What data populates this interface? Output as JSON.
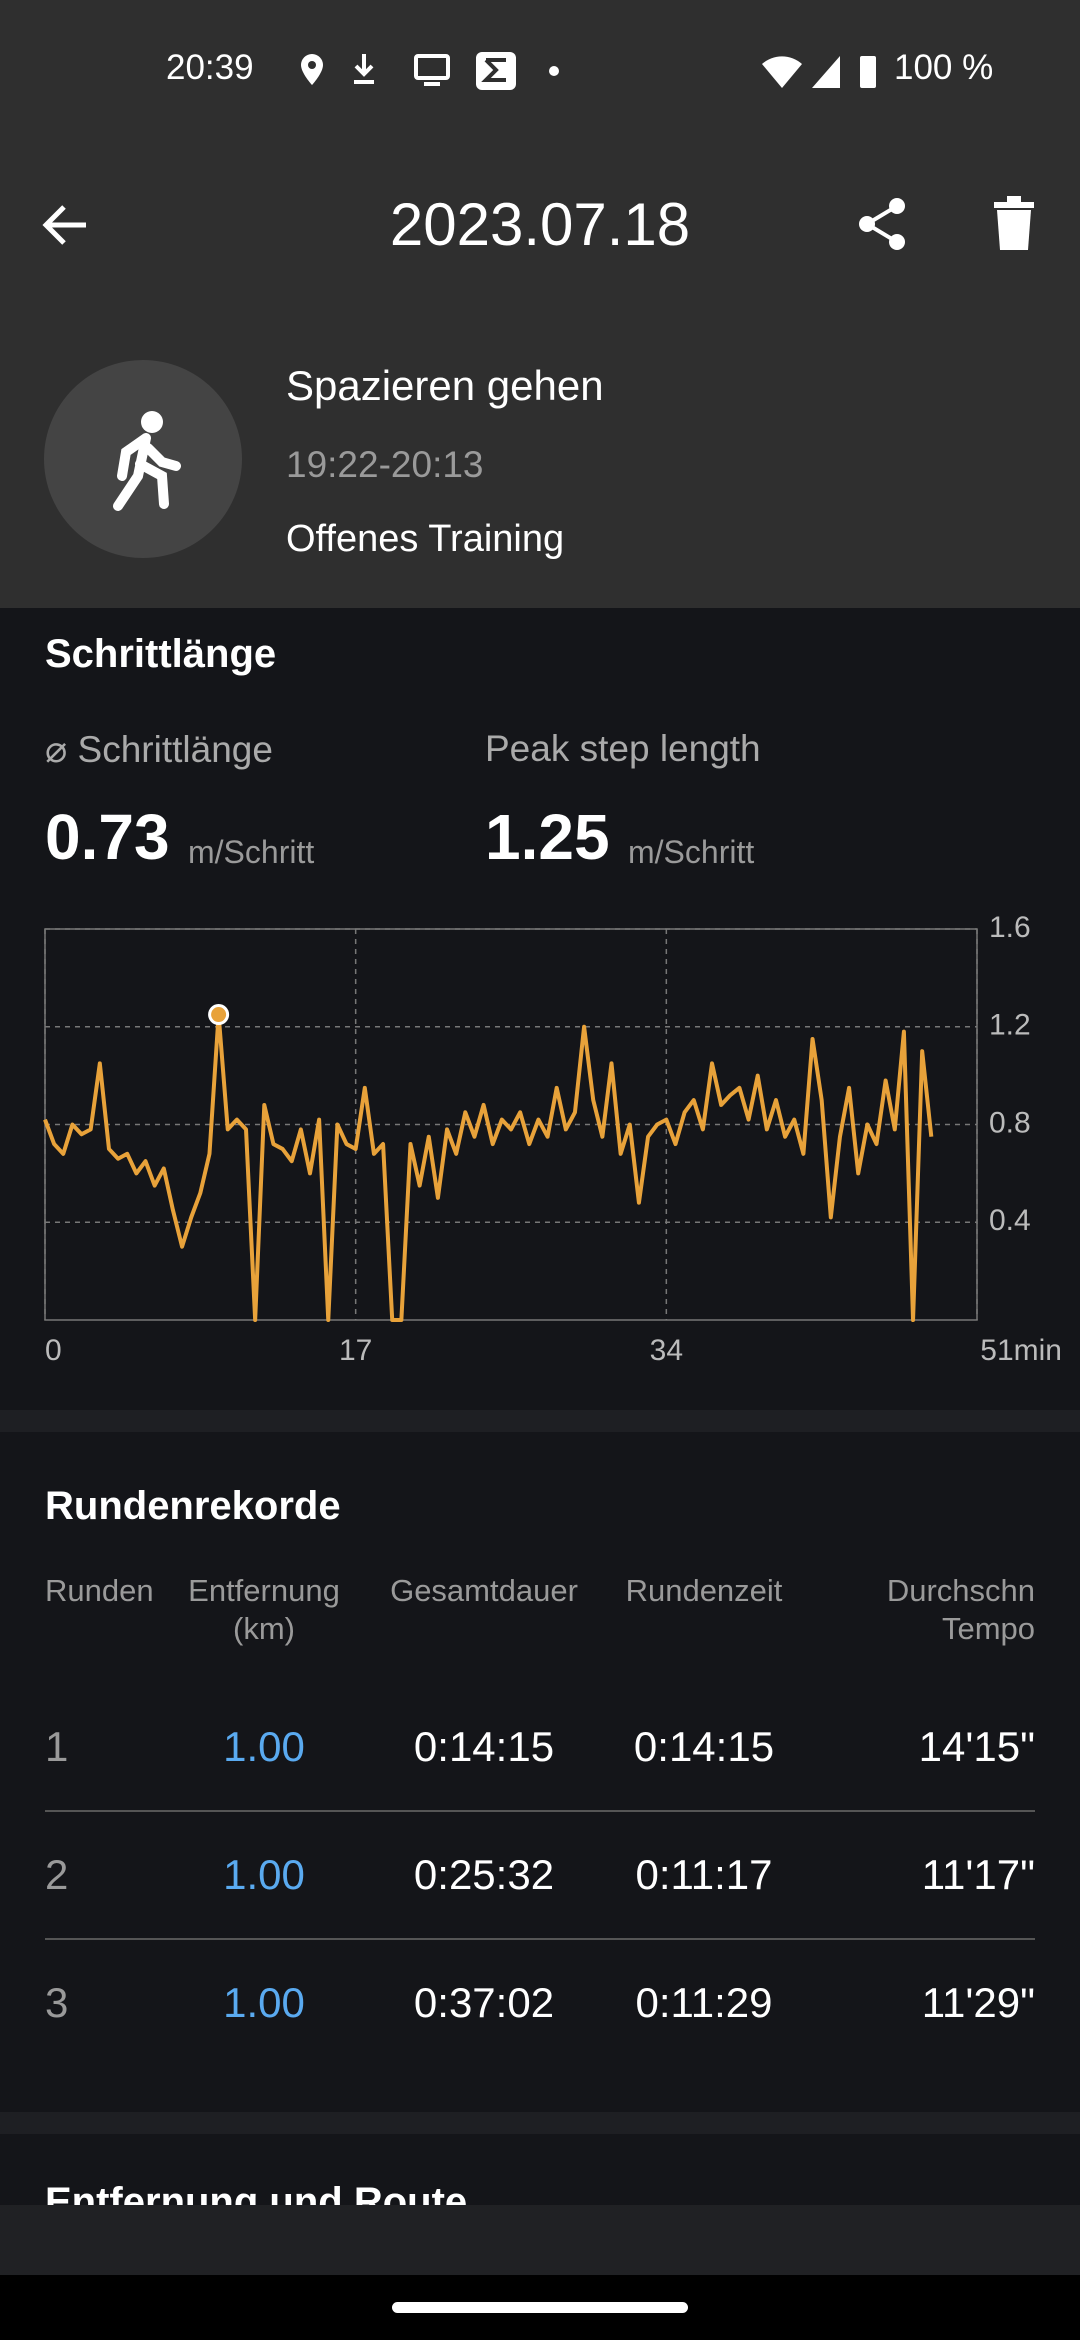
{
  "status_bar": {
    "time": "20:39",
    "battery": "100 %"
  },
  "header": {
    "title": "2023.07.18"
  },
  "activity": {
    "name": "Spazieren gehen",
    "time_range": "19:22-20:13",
    "mode": "Offenes Training"
  },
  "step_length": {
    "section_title": "Schrittlänge",
    "avg_label": "⌀ Schrittlänge",
    "avg_value": "0.73",
    "avg_unit": "m/Schritt",
    "peak_label": "Peak step length",
    "peak_value": "1.25",
    "peak_unit": "m/Schritt"
  },
  "chart_data": {
    "type": "line",
    "x": [
      0,
      0.5,
      1,
      1.5,
      2,
      2.5,
      3,
      3.5,
      4,
      4.5,
      5,
      5.5,
      6,
      6.5,
      7,
      7.5,
      8,
      8.5,
      9,
      9.5,
      10,
      10.5,
      11,
      11.5,
      12,
      12.5,
      13,
      13.5,
      14,
      14.5,
      15,
      15.5,
      16,
      16.5,
      17,
      17.5,
      18,
      18.5,
      19,
      19.5,
      20,
      20.5,
      21,
      21.5,
      22,
      22.5,
      23,
      23.5,
      24,
      24.5,
      25,
      25.5,
      26,
      26.5,
      27,
      27.5,
      28,
      28.5,
      29,
      29.5,
      30,
      30.5,
      31,
      31.5,
      32,
      32.5,
      33,
      33.5,
      34,
      34.5,
      35,
      35.5,
      36,
      36.5,
      37,
      37.5,
      38,
      38.5,
      39,
      39.5,
      40,
      40.5,
      41,
      41.5,
      42,
      42.5,
      43,
      43.5,
      44,
      44.5,
      45,
      45.5,
      46,
      46.5,
      47,
      47.5,
      48,
      48.5
    ],
    "series": [
      {
        "color": "#e8a23a",
        "values": [
          0.82,
          0.72,
          0.68,
          0.8,
          0.76,
          0.78,
          1.05,
          0.7,
          0.66,
          0.68,
          0.6,
          0.65,
          0.55,
          0.62,
          0.45,
          0.3,
          0.42,
          0.52,
          0.68,
          1.25,
          0.78,
          0.82,
          0.78,
          0,
          0.88,
          0.72,
          0.7,
          0.65,
          0.78,
          0.6,
          0.82,
          0,
          0.8,
          0.72,
          0.7,
          0.95,
          0.68,
          0.72,
          0,
          0,
          0.72,
          0.55,
          0.75,
          0.5,
          0.78,
          0.68,
          0.85,
          0.75,
          0.88,
          0.72,
          0.82,
          0.78,
          0.85,
          0.72,
          0.82,
          0.75,
          0.95,
          0.78,
          0.85,
          1.2,
          0.9,
          0.75,
          1.05,
          0.68,
          0.8,
          0.48,
          0.75,
          0.8,
          0.82,
          0.72,
          0.85,
          0.9,
          0.78,
          1.05,
          0.88,
          0.92,
          0.95,
          0.82,
          1.0,
          0.78,
          0.9,
          0.75,
          0.82,
          0.68,
          1.15,
          0.9,
          0.42,
          0.75,
          0.95,
          0.6,
          0.8,
          0.72,
          0.98,
          0.78,
          1.18,
          0,
          1.1,
          0.75
        ]
      }
    ],
    "xlim": [
      0,
      51
    ],
    "xticks": [
      0,
      17,
      34,
      {
        "value": 51,
        "label": "51min"
      }
    ],
    "ylim": [
      0,
      1.6
    ],
    "yticks": [
      0.4,
      0.8,
      1.2,
      1.6
    ],
    "grid": true
  },
  "laps": {
    "title": "Rundenrekorde",
    "columns": [
      "Runden",
      "Entfernung (km)",
      "Gesamtdauer",
      "Rundenzeit",
      "Durchschn Tempo"
    ],
    "rows": [
      [
        "1",
        "1.00",
        "0:14:15",
        "0:14:15",
        "14'15\""
      ],
      [
        "2",
        "1.00",
        "0:25:32",
        "0:11:17",
        "11'17\""
      ],
      [
        "3",
        "1.00",
        "0:37:02",
        "0:11:29",
        "11'29\""
      ]
    ]
  },
  "next_section": {
    "title": "Entfernung und Route"
  }
}
